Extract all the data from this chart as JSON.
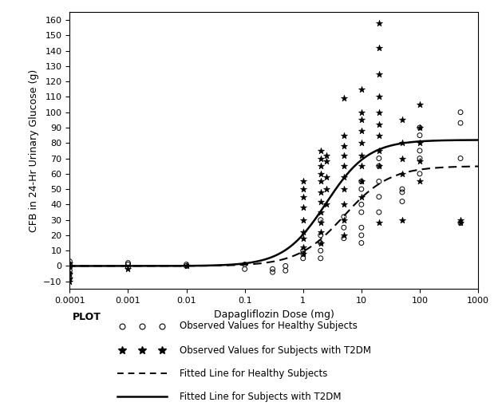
{
  "title": "",
  "xlabel": "Dapagliflozin Dose (mg)",
  "ylabel": "CFB in 24-Hr Urinary Glucose (g)",
  "xlim": [
    0.0001,
    1000
  ],
  "ylim": [
    -15,
    165
  ],
  "yticks": [
    -10,
    0,
    10,
    20,
    30,
    40,
    50,
    60,
    70,
    80,
    90,
    100,
    110,
    120,
    130,
    140,
    150,
    160
  ],
  "xticks": [
    0.0001,
    0.001,
    0.01,
    0.1,
    1,
    10,
    100,
    1000
  ],
  "xtick_labels": [
    "0.0001",
    "0.001",
    "0.01",
    "0.1",
    "1",
    "10",
    "100",
    "1000"
  ],
  "background_color": "#ffffff",
  "plot_bg_color": "#ffffff",
  "healthy_scatter": {
    "doses": [
      0.0001,
      0.0001,
      0.0001,
      0.0001,
      0.0001,
      0.0001,
      0.001,
      0.001,
      0.001,
      0.01,
      0.01,
      0.1,
      0.1,
      0.3,
      0.3,
      0.5,
      0.5,
      1.0,
      1.0,
      1.0,
      2.0,
      2.0,
      2.0,
      2.0,
      2.0,
      5.0,
      5.0,
      5.0,
      10.0,
      10.0,
      10.0,
      10.0,
      10.0,
      10.0,
      10.0,
      20.0,
      20.0,
      20.0,
      20.0,
      20.0,
      50.0,
      50.0,
      50.0,
      100.0,
      100.0,
      100.0,
      100.0,
      100.0,
      500.0,
      500.0,
      500.0,
      500.0
    ],
    "cfb": [
      3,
      1,
      -1,
      -3,
      -5,
      -8,
      2,
      1,
      -1,
      1,
      0,
      1,
      -2,
      -2,
      -4,
      0,
      -3,
      10,
      8,
      5,
      30,
      20,
      15,
      10,
      5,
      32,
      25,
      18,
      55,
      50,
      40,
      35,
      25,
      20,
      15,
      70,
      65,
      55,
      45,
      35,
      50,
      48,
      42,
      90,
      85,
      75,
      70,
      60,
      100,
      93,
      70,
      28
    ]
  },
  "t2dm_scatter": {
    "doses": [
      0.0001,
      0.0001,
      0.0001,
      0.0001,
      0.0001,
      0.001,
      0.01,
      1.0,
      1.0,
      1.0,
      1.0,
      1.0,
      1.0,
      1.0,
      1.0,
      1.0,
      2.0,
      2.0,
      2.0,
      2.0,
      2.0,
      2.0,
      2.0,
      2.0,
      2.0,
      2.0,
      2.0,
      2.5,
      2.5,
      2.5,
      2.5,
      2.5,
      5.0,
      5.0,
      5.0,
      5.0,
      5.0,
      5.0,
      5.0,
      5.0,
      5.0,
      5.0,
      10.0,
      10.0,
      10.0,
      10.0,
      10.0,
      10.0,
      10.0,
      10.0,
      10.0,
      20.0,
      20.0,
      20.0,
      20.0,
      20.0,
      20.0,
      20.0,
      20.0,
      20.0,
      20.0,
      50.0,
      50.0,
      50.0,
      50.0,
      50.0,
      100.0,
      100.0,
      100.0,
      100.0,
      100.0,
      500.0,
      500.0
    ],
    "cfb": [
      -5,
      -8,
      -10,
      2,
      0,
      -2,
      0,
      55,
      50,
      45,
      38,
      30,
      22,
      18,
      12,
      8,
      75,
      70,
      65,
      60,
      55,
      48,
      42,
      35,
      28,
      22,
      15,
      72,
      68,
      58,
      50,
      40,
      109,
      85,
      78,
      72,
      65,
      58,
      50,
      40,
      30,
      20,
      115,
      100,
      95,
      88,
      80,
      72,
      65,
      55,
      45,
      158,
      142,
      125,
      110,
      100,
      92,
      85,
      75,
      65,
      28,
      95,
      80,
      70,
      60,
      30,
      105,
      90,
      80,
      68,
      55,
      30,
      28
    ]
  },
  "emax_t2dm": {
    "emax": 82,
    "ed50": 2.5,
    "e0": 0,
    "hill": 1.2
  },
  "emax_healthy": {
    "emax": 65,
    "ed50": 5.0,
    "e0": 0,
    "hill": 1.1
  },
  "marker_color": "#000000",
  "line_color": "#000000",
  "legend_plot_label": "PLOT",
  "legend_row1_label": "Observed Values for Healthy Subjects",
  "legend_row2_label": "Observed Values for Subjects with T2DM",
  "legend_row3_label": "Fitted Line for Healthy Subjects",
  "legend_row4_label": "Fitted Line for Subjects with T2DM"
}
